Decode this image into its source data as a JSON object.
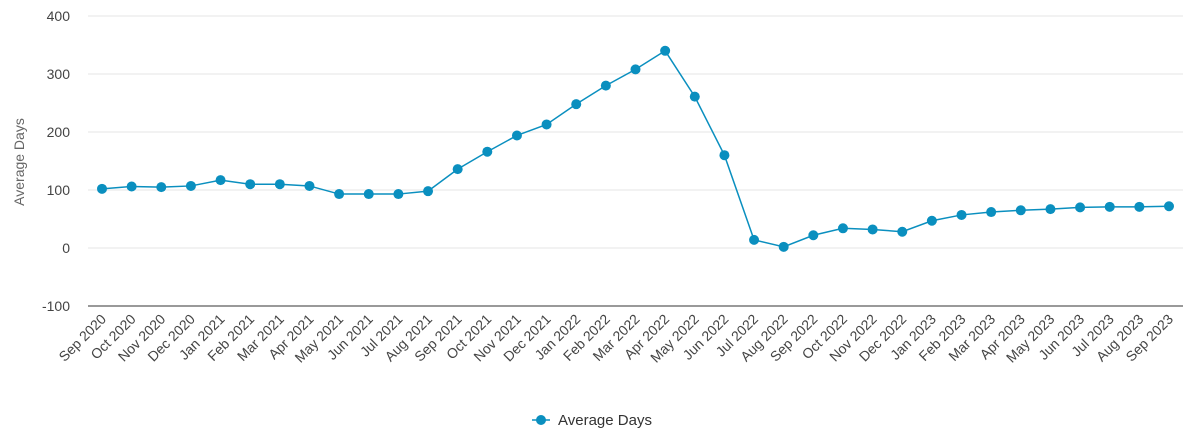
{
  "chart_data": {
    "type": "line",
    "ylabel": "Average Days",
    "ylim": [
      -100,
      400
    ],
    "yticks": [
      -100,
      0,
      100,
      200,
      300,
      400
    ],
    "grid": true,
    "legend_position": "bottom-center",
    "colors": {
      "series": "#0a8fbf",
      "grid": "#e6e6e6",
      "axis": "#333333"
    },
    "categories": [
      "Sep 2020",
      "Oct 2020",
      "Nov 2020",
      "Dec 2020",
      "Jan 2021",
      "Feb 2021",
      "Mar 2021",
      "Apr 2021",
      "May 2021",
      "Jun 2021",
      "Jul 2021",
      "Aug 2021",
      "Sep 2021",
      "Oct 2021",
      "Nov 2021",
      "Dec 2021",
      "Jan 2022",
      "Feb 2022",
      "Mar 2022",
      "Apr 2022",
      "May 2022",
      "Jun 2022",
      "Jul 2022",
      "Aug 2022",
      "Sep 2022",
      "Oct 2022",
      "Nov 2022",
      "Dec 2022",
      "Jan 2023",
      "Feb 2023",
      "Mar 2023",
      "Apr 2023",
      "May 2023",
      "Jun 2023",
      "Jul 2023",
      "Aug 2023",
      "Sep 2023"
    ],
    "series": [
      {
        "name": "Average Days",
        "values": [
          102,
          106,
          105,
          107,
          117,
          110,
          110,
          107,
          93,
          93,
          93,
          98,
          136,
          166,
          194,
          213,
          248,
          280,
          308,
          340,
          261,
          160,
          14,
          2,
          22,
          34,
          32,
          28,
          47,
          57,
          62,
          65,
          67,
          70,
          71,
          71,
          72
        ]
      }
    ]
  }
}
